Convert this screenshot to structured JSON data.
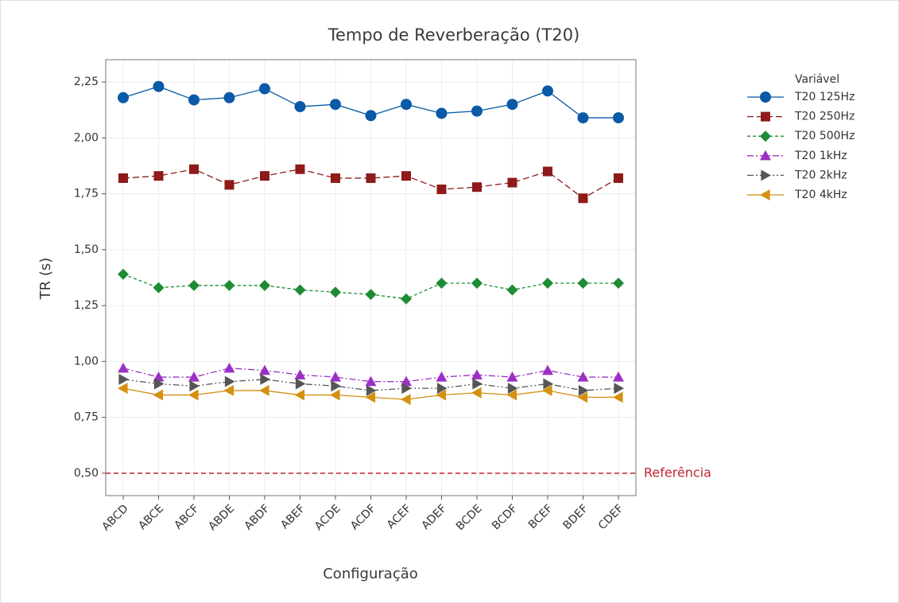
{
  "chart_data": {
    "type": "line",
    "title": "Tempo de Reverberação (T20)",
    "x_label": "Configuração",
    "y_label": "TR (s)",
    "legend_title": "Variável",
    "legend": "outside-right",
    "grid": true,
    "categories": [
      "ABCD",
      "ABCE",
      "ABCF",
      "ABDE",
      "ABDF",
      "ABEF",
      "ACDE",
      "ACDF",
      "ACEF",
      "ADEF",
      "BCDE",
      "BCDF",
      "BCEF",
      "BDEF",
      "CDEF"
    ],
    "ylim": [
      0.4,
      2.35
    ],
    "yticks": [
      {
        "value": 0.5,
        "label": "0,50"
      },
      {
        "value": 0.75,
        "label": "0,75"
      },
      {
        "value": 1.0,
        "label": "1,00"
      },
      {
        "value": 1.25,
        "label": "1,25"
      },
      {
        "value": 1.5,
        "label": "1,50"
      },
      {
        "value": 1.75,
        "label": "1,75"
      },
      {
        "value": 2.0,
        "label": "2,00"
      },
      {
        "value": 2.25,
        "label": "2,25"
      }
    ],
    "reference": {
      "value": 0.5,
      "label": "Referência",
      "color": "#c0262d"
    },
    "series": [
      {
        "name": "T20 125Hz",
        "color": "#0a5aa8",
        "marker": "circle",
        "dash": "solid",
        "values": [
          2.18,
          2.23,
          2.17,
          2.18,
          2.22,
          2.14,
          2.15,
          2.1,
          2.15,
          2.11,
          2.12,
          2.15,
          2.21,
          2.09,
          2.09
        ]
      },
      {
        "name": "T20 250Hz",
        "color": "#8e1a1a",
        "marker": "square",
        "dash": "dashed",
        "values": [
          1.82,
          1.83,
          1.86,
          1.79,
          1.83,
          1.86,
          1.82,
          1.82,
          1.83,
          1.77,
          1.78,
          1.8,
          1.85,
          1.73,
          1.82
        ]
      },
      {
        "name": "T20 500Hz",
        "color": "#1e8c34",
        "marker": "diamond",
        "dash": "dotted",
        "values": [
          1.39,
          1.33,
          1.34,
          1.34,
          1.34,
          1.32,
          1.31,
          1.3,
          1.28,
          1.35,
          1.35,
          1.32,
          1.35,
          1.35,
          1.35
        ]
      },
      {
        "name": "T20 1kHz",
        "color": "#9b30c4",
        "marker": "triangle-up",
        "dash": "dashdot",
        "values": [
          0.97,
          0.93,
          0.93,
          0.97,
          0.96,
          0.94,
          0.93,
          0.91,
          0.91,
          0.93,
          0.94,
          0.93,
          0.96,
          0.93,
          0.93
        ]
      },
      {
        "name": "T20 2kHz",
        "color": "#555555",
        "marker": "triangle-right",
        "dash": "dashdotdot",
        "values": [
          0.92,
          0.9,
          0.89,
          0.91,
          0.92,
          0.9,
          0.89,
          0.87,
          0.88,
          0.88,
          0.9,
          0.88,
          0.9,
          0.87,
          0.88
        ]
      },
      {
        "name": "T20 4kHz",
        "color": "#d4900f",
        "marker": "triangle-left",
        "dash": "solid",
        "values": [
          0.88,
          0.85,
          0.85,
          0.87,
          0.87,
          0.85,
          0.85,
          0.84,
          0.83,
          0.85,
          0.86,
          0.85,
          0.87,
          0.84,
          0.84
        ]
      }
    ]
  }
}
